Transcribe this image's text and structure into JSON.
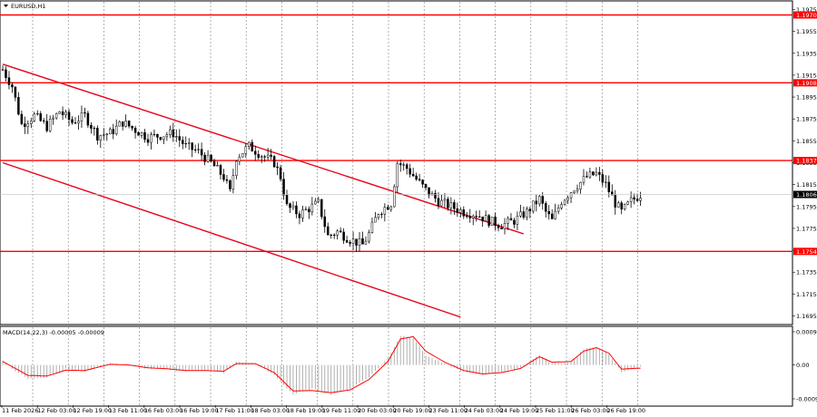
{
  "window": {
    "symbol_title": "EURUSD,H1",
    "indicator_title": "MACD(14,22,3) -0.00005 -0.00009"
  },
  "colors": {
    "background": "#ffffff",
    "grid": "#7f7f7f",
    "candle": "#000000",
    "level_line": "#ff0000",
    "channel_line": "#e8001c",
    "price_tag_red": "#ff0000",
    "price_tag_current": "#000000",
    "macd_histogram": "#a8a8a8",
    "macd_signal": "#ff0000"
  },
  "price_axis": {
    "ticks": [
      "1.1975",
      "1.1955",
      "1.1935",
      "1.1915",
      "1.1895",
      "1.1875",
      "1.1855",
      "1.1835",
      "1.1815",
      "1.1795",
      "1.1775",
      "1.1755",
      "1.1735",
      "1.1715",
      "1.1695"
    ],
    "current_price_tag": "1.1806",
    "level_tags": [
      "1.1970",
      "1.1908",
      "1.1837",
      "1.1754"
    ]
  },
  "macd_axis": {
    "ticks": [
      "0.00096",
      "0.00",
      "-0.00098"
    ]
  },
  "time_axis": {
    "labels": [
      "11 Feb 2026",
      "12 Feb 03:00",
      "12 Feb 19:00",
      "13 Feb 11:00",
      "16 Feb 03:00",
      "16 Feb 19:00",
      "17 Feb 11:00",
      "18 Feb 03:00",
      "18 Feb 19:00",
      "19 Feb 11:00",
      "20 Feb 03:00",
      "20 Feb 19:00",
      "23 Feb 11:00",
      "24 Feb 03:00",
      "24 Feb 19:00",
      "25 Feb 11:00",
      "26 Feb 03:00",
      "26 Feb 19:00"
    ]
  },
  "chart_data": {
    "type": "candlestick",
    "symbol": "EURUSD",
    "timeframe": "H1",
    "ylim": [
      1.1688,
      1.1982
    ],
    "horizontal_levels": [
      1.197,
      1.1908,
      1.1837,
      1.1754
    ],
    "current_price": 1.1806,
    "channel": {
      "upper": {
        "from": [
          0,
          1.1925
        ],
        "to": [
          165,
          1.177
        ]
      },
      "lower": {
        "from": [
          0,
          1.1835
        ],
        "to": [
          145,
          1.1694
        ]
      }
    },
    "close_path": [
      [
        0,
        1.192
      ],
      [
        3,
        1.1905
      ],
      [
        6,
        1.187
      ],
      [
        10,
        1.1878
      ],
      [
        14,
        1.1868
      ],
      [
        18,
        1.1882
      ],
      [
        22,
        1.1872
      ],
      [
        26,
        1.1878
      ],
      [
        30,
        1.186
      ],
      [
        34,
        1.1862
      ],
      [
        38,
        1.1872
      ],
      [
        42,
        1.1865
      ],
      [
        46,
        1.1858
      ],
      [
        50,
        1.186
      ],
      [
        54,
        1.1862
      ],
      [
        58,
        1.185
      ],
      [
        62,
        1.1845
      ],
      [
        66,
        1.1835
      ],
      [
        70,
        1.1822
      ],
      [
        72,
        1.1808
      ],
      [
        74,
        1.184
      ],
      [
        78,
        1.185
      ],
      [
        82,
        1.1842
      ],
      [
        86,
        1.1835
      ],
      [
        88,
        1.1822
      ],
      [
        90,
        1.1795
      ],
      [
        94,
        1.1788
      ],
      [
        98,
        1.1795
      ],
      [
        100,
        1.1798
      ],
      [
        103,
        1.1768
      ],
      [
        106,
        1.1772
      ],
      [
        110,
        1.1765
      ],
      [
        114,
        1.176
      ],
      [
        116,
        1.177
      ],
      [
        119,
        1.179
      ],
      [
        123,
        1.1798
      ],
      [
        125,
        1.1835
      ],
      [
        128,
        1.183
      ],
      [
        131,
        1.182
      ],
      [
        134,
        1.181
      ],
      [
        138,
        1.18
      ],
      [
        142,
        1.1795
      ],
      [
        146,
        1.179
      ],
      [
        150,
        1.1788
      ],
      [
        154,
        1.1782
      ],
      [
        158,
        1.1778
      ],
      [
        162,
        1.1782
      ],
      [
        166,
        1.179
      ],
      [
        170,
        1.1802
      ],
      [
        172,
        1.179
      ],
      [
        174,
        1.1782
      ],
      [
        177,
        1.18
      ],
      [
        181,
        1.1812
      ],
      [
        185,
        1.1822
      ],
      [
        188,
        1.1825
      ],
      [
        191,
        1.1815
      ],
      [
        194,
        1.1798
      ],
      [
        196,
        1.179
      ],
      [
        199,
        1.18
      ],
      [
        202,
        1.1806
      ]
    ],
    "macd": {
      "histogram_path": [
        [
          0,
          0.00015
        ],
        [
          4,
          -0.00018
        ],
        [
          8,
          -0.0004
        ],
        [
          14,
          -0.00035
        ],
        [
          20,
          -0.00012
        ],
        [
          26,
          -0.00018
        ],
        [
          34,
          5e-05
        ],
        [
          40,
          -2e-05
        ],
        [
          46,
          -0.0001
        ],
        [
          52,
          -0.00012
        ],
        [
          58,
          -0.00018
        ],
        [
          64,
          -0.00015
        ],
        [
          70,
          -0.00022
        ],
        [
          74,
          0.0001
        ],
        [
          80,
          4e-05
        ],
        [
          86,
          -0.0003
        ],
        [
          92,
          -0.00085
        ],
        [
          98,
          -0.0007
        ],
        [
          104,
          -0.00085
        ],
        [
          110,
          -0.00068
        ],
        [
          116,
          -0.00035
        ],
        [
          122,
          0.0002
        ],
        [
          126,
          0.00085
        ],
        [
          130,
          0.0008
        ],
        [
          134,
          0.00028
        ],
        [
          140,
          3e-05
        ],
        [
          146,
          -0.0002
        ],
        [
          152,
          -0.00028
        ],
        [
          158,
          -0.0002
        ],
        [
          164,
          -8e-05
        ],
        [
          170,
          0.0003
        ],
        [
          174,
          4e-05
        ],
        [
          180,
          0.0001
        ],
        [
          184,
          0.00045
        ],
        [
          188,
          0.00052
        ],
        [
          192,
          0.0003
        ],
        [
          196,
          -0.0002
        ],
        [
          202,
          -5e-05
        ]
      ],
      "signal_path": [
        [
          0,
          0.0001
        ],
        [
          4,
          -0.0001
        ],
        [
          8,
          -0.0003
        ],
        [
          14,
          -0.00032
        ],
        [
          20,
          -0.00015
        ],
        [
          26,
          -0.00016
        ],
        [
          34,
          2e-05
        ],
        [
          40,
          0.0
        ],
        [
          46,
          -8e-05
        ],
        [
          52,
          -0.00011
        ],
        [
          58,
          -0.00016
        ],
        [
          64,
          -0.00016
        ],
        [
          70,
          -0.00018
        ],
        [
          74,
          4e-05
        ],
        [
          80,
          4e-05
        ],
        [
          86,
          -0.00022
        ],
        [
          92,
          -0.00075
        ],
        [
          98,
          -0.00074
        ],
        [
          104,
          -0.0008
        ],
        [
          110,
          -0.00072
        ],
        [
          116,
          -0.00042
        ],
        [
          122,
          0.0001
        ],
        [
          126,
          0.00075
        ],
        [
          130,
          0.00082
        ],
        [
          134,
          0.0004
        ],
        [
          140,
          8e-05
        ],
        [
          146,
          -0.00016
        ],
        [
          152,
          -0.00026
        ],
        [
          158,
          -0.00022
        ],
        [
          164,
          -0.0001
        ],
        [
          170,
          0.00024
        ],
        [
          174,
          8e-05
        ],
        [
          180,
          0.0001
        ],
        [
          184,
          0.0004
        ],
        [
          188,
          0.0005
        ],
        [
          192,
          0.00034
        ],
        [
          196,
          -0.00012
        ],
        [
          202,
          -9e-05
        ]
      ]
    }
  }
}
